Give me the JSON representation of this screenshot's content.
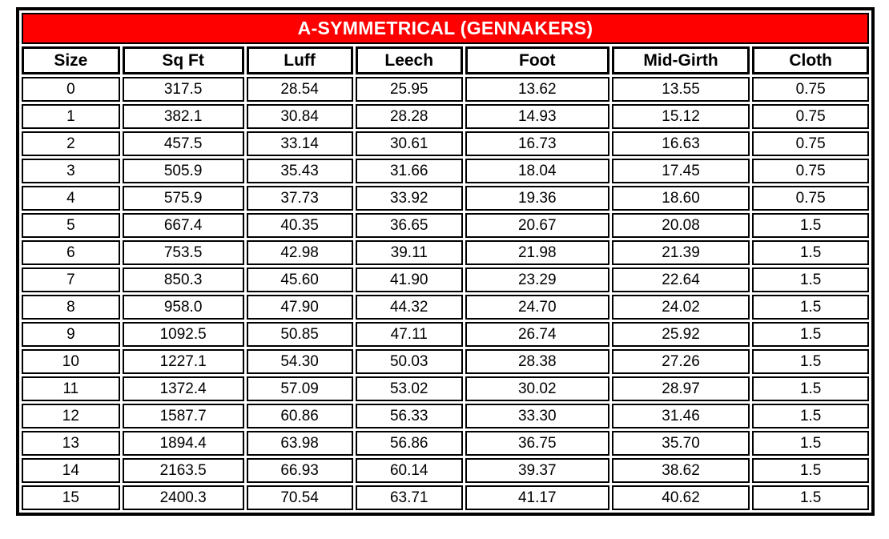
{
  "table": {
    "title": "A-SYMMETRICAL (GENNAKERS)",
    "columns": [
      "Size",
      "Sq Ft",
      "Luff",
      "Leech",
      "Foot",
      "Mid-Girth",
      "Cloth"
    ],
    "rows": [
      [
        "0",
        "317.5",
        "28.54",
        "25.95",
        "13.62",
        "13.55",
        "0.75"
      ],
      [
        "1",
        "382.1",
        "30.84",
        "28.28",
        "14.93",
        "15.12",
        "0.75"
      ],
      [
        "2",
        "457.5",
        "33.14",
        "30.61",
        "16.73",
        "16.63",
        "0.75"
      ],
      [
        "3",
        "505.9",
        "35.43",
        "31.66",
        "18.04",
        "17.45",
        "0.75"
      ],
      [
        "4",
        "575.9",
        "37.73",
        "33.92",
        "19.36",
        "18.60",
        "0.75"
      ],
      [
        "5",
        "667.4",
        "40.35",
        "36.65",
        "20.67",
        "20.08",
        "1.5"
      ],
      [
        "6",
        "753.5",
        "42.98",
        "39.11",
        "21.98",
        "21.39",
        "1.5"
      ],
      [
        "7",
        "850.3",
        "45.60",
        "41.90",
        "23.29",
        "22.64",
        "1.5"
      ],
      [
        "8",
        "958.0",
        "47.90",
        "44.32",
        "24.70",
        "24.02",
        "1.5"
      ],
      [
        "9",
        "1092.5",
        "50.85",
        "47.11",
        "26.74",
        "25.92",
        "1.5"
      ],
      [
        "10",
        "1227.1",
        "54.30",
        "50.03",
        "28.38",
        "27.26",
        "1.5"
      ],
      [
        "11",
        "1372.4",
        "57.09",
        "53.02",
        "30.02",
        "28.97",
        "1.5"
      ],
      [
        "12",
        "1587.7",
        "60.86",
        "56.33",
        "33.30",
        "31.46",
        "1.5"
      ],
      [
        "13",
        "1894.4",
        "63.98",
        "56.86",
        "36.75",
        "35.70",
        "1.5"
      ],
      [
        "14",
        "2163.5",
        "66.93",
        "60.14",
        "39.37",
        "38.62",
        "1.5"
      ],
      [
        "15",
        "2400.3",
        "70.54",
        "63.71",
        "41.17",
        "40.62",
        "1.5"
      ]
    ],
    "column_widths_pct": [
      11.8,
      14.6,
      12.8,
      12.9,
      17.3,
      16.6,
      14.0
    ],
    "colors": {
      "title_bg": "#FE0000",
      "title_text": "#FFFFFF",
      "border": "#000000",
      "cell_bg": "#FFFFFF",
      "cell_text": "#000000"
    }
  },
  "chart_data": {
    "type": "table",
    "title": "A-SYMMETRICAL (GENNAKERS)",
    "columns": [
      "Size",
      "Sq Ft",
      "Luff",
      "Leech",
      "Foot",
      "Mid-Girth",
      "Cloth"
    ],
    "series": [
      {
        "name": "Size",
        "values": [
          0,
          1,
          2,
          3,
          4,
          5,
          6,
          7,
          8,
          9,
          10,
          11,
          12,
          13,
          14,
          15
        ]
      },
      {
        "name": "Sq Ft",
        "values": [
          317.5,
          382.1,
          457.5,
          505.9,
          575.9,
          667.4,
          753.5,
          850.3,
          958.0,
          1092.5,
          1227.1,
          1372.4,
          1587.7,
          1894.4,
          2163.5,
          2400.3
        ]
      },
      {
        "name": "Luff",
        "values": [
          28.54,
          30.84,
          33.14,
          35.43,
          37.73,
          40.35,
          42.98,
          45.6,
          47.9,
          50.85,
          54.3,
          57.09,
          60.86,
          63.98,
          66.93,
          70.54
        ]
      },
      {
        "name": "Leech",
        "values": [
          25.95,
          28.28,
          30.61,
          31.66,
          33.92,
          36.65,
          39.11,
          41.9,
          44.32,
          47.11,
          50.03,
          53.02,
          56.33,
          56.86,
          60.14,
          63.71
        ]
      },
      {
        "name": "Foot",
        "values": [
          13.62,
          14.93,
          16.73,
          18.04,
          19.36,
          20.67,
          21.98,
          23.29,
          24.7,
          26.74,
          28.38,
          30.02,
          33.3,
          36.75,
          39.37,
          41.17
        ]
      },
      {
        "name": "Mid-Girth",
        "values": [
          13.55,
          15.12,
          16.63,
          17.45,
          18.6,
          20.08,
          21.39,
          22.64,
          24.02,
          25.92,
          27.26,
          28.97,
          31.46,
          35.7,
          38.62,
          40.62
        ]
      },
      {
        "name": "Cloth",
        "values": [
          0.75,
          0.75,
          0.75,
          0.75,
          0.75,
          1.5,
          1.5,
          1.5,
          1.5,
          1.5,
          1.5,
          1.5,
          1.5,
          1.5,
          1.5,
          1.5
        ]
      }
    ]
  }
}
